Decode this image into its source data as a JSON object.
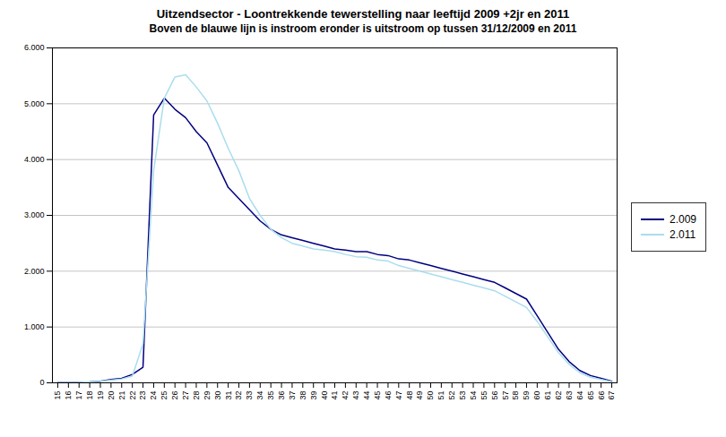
{
  "chart_data": {
    "type": "line",
    "title": "Uitzendsector - Loontrekkende tewerstelling naar leeftijd 2009 +2jr en 2011",
    "subtitle": "Boven de blauwe lijn is instroom eronder is uitstroom op tussen 31/12/2009 en 2011",
    "categories": [
      "15",
      "16",
      "17",
      "18",
      "19",
      "20",
      "21",
      "22",
      "23",
      "24",
      "25",
      "26",
      "27",
      "28",
      "29",
      "30",
      "31",
      "32",
      "33",
      "34",
      "35",
      "36",
      "37",
      "38",
      "39",
      "40",
      "41",
      "42",
      "43",
      "44",
      "45",
      "46",
      "47",
      "48",
      "49",
      "50",
      "51",
      "52",
      "53",
      "54",
      "55",
      "56",
      "57",
      "58",
      "59",
      "60",
      "61",
      "62",
      "63",
      "64",
      "65",
      "66",
      "67"
    ],
    "series": [
      {
        "name": "2.009",
        "color": "#000080",
        "values": [
          5,
          5,
          10,
          15,
          30,
          60,
          80,
          150,
          280,
          4800,
          5100,
          4900,
          4750,
          4500,
          4300,
          3900,
          3500,
          3300,
          3100,
          2900,
          2750,
          2650,
          2600,
          2550,
          2500,
          2450,
          2400,
          2380,
          2350,
          2350,
          2300,
          2280,
          2220,
          2200,
          2150,
          2100,
          2050,
          2000,
          1950,
          1900,
          1850,
          1800,
          1700,
          1600,
          1500,
          1200,
          900,
          600,
          380,
          220,
          130,
          80,
          30
        ]
      },
      {
        "name": "2.011",
        "color": "#aaddee",
        "values": [
          5,
          5,
          10,
          15,
          30,
          50,
          70,
          120,
          700,
          3800,
          5100,
          5480,
          5520,
          5300,
          5050,
          4650,
          4200,
          3800,
          3300,
          3000,
          2750,
          2600,
          2500,
          2450,
          2400,
          2380,
          2350,
          2300,
          2260,
          2250,
          2200,
          2180,
          2100,
          2050,
          2000,
          1950,
          1900,
          1850,
          1800,
          1750,
          1700,
          1650,
          1550,
          1450,
          1350,
          1100,
          820,
          540,
          330,
          180,
          100,
          60,
          20
        ]
      }
    ],
    "ylim": [
      0,
      6000
    ],
    "yticks": [
      0,
      {
        "value": 1000,
        "label": "1.000"
      },
      {
        "value": 2000,
        "label": "2.000"
      },
      {
        "value": 3000,
        "label": "3.000"
      },
      {
        "value": 4000,
        "label": "4.000"
      },
      {
        "value": 5000,
        "label": "5.000"
      },
      {
        "value": 6000,
        "label": "6.000"
      }
    ],
    "grid": true,
    "legend": "right"
  }
}
